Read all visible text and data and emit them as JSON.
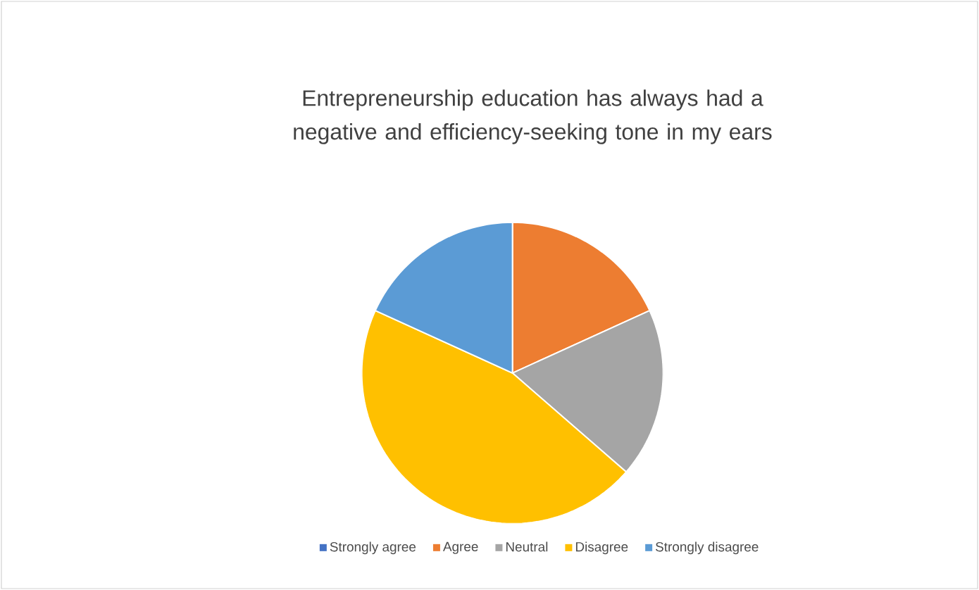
{
  "chart_data": {
    "type": "pie",
    "title": "Entrepreneurship education has always had a negative and efficiency-seeking tone in my ears",
    "categories": [
      "Strongly agree",
      "Agree",
      "Neutral",
      "Disagree",
      "Strongly disagree"
    ],
    "values": [
      0,
      18.2,
      18.2,
      45.4,
      18.2
    ],
    "colors": [
      "#4472c4",
      "#ed7d31",
      "#a5a5a5",
      "#ffc000",
      "#5b9bd5"
    ],
    "legend": "bottom"
  }
}
